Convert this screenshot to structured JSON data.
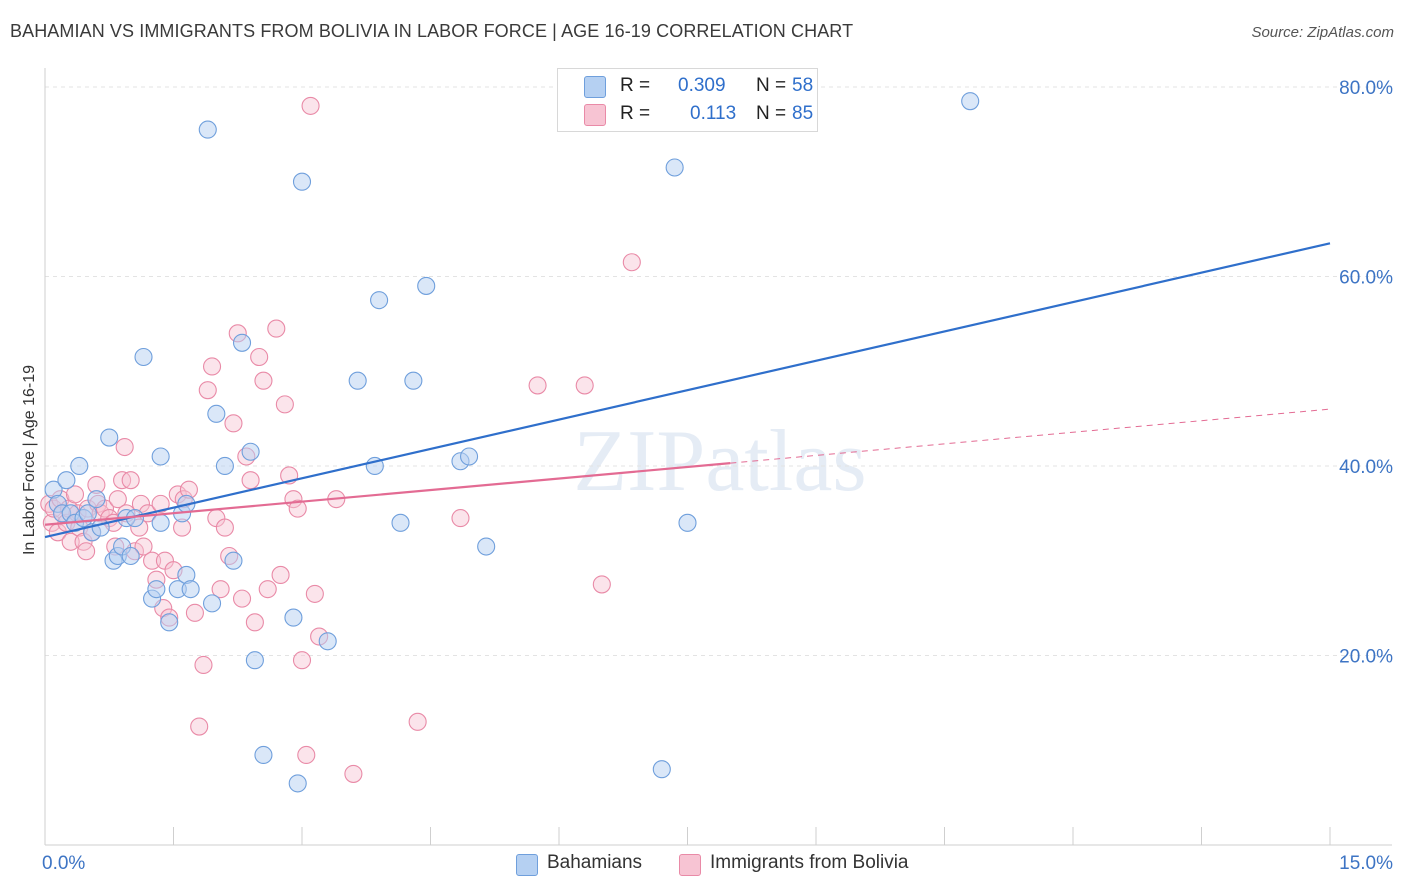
{
  "title": "BAHAMIAN VS IMMIGRANTS FROM BOLIVIA IN LABOR FORCE | AGE 16-19 CORRELATION CHART",
  "source": "Source: ZipAtlas.com",
  "watermark": "ZIPatlas",
  "legend_top": {
    "rows": [
      {
        "r_label": "R =",
        "r_value": "0.309",
        "n_label": "N =",
        "n_value": "58"
      },
      {
        "r_label": "R =",
        "r_value": "0.113",
        "n_label": "N =",
        "n_value": "85"
      }
    ]
  },
  "legend_bottom": {
    "items": [
      "Bahamians",
      "Immigrants from Bolivia"
    ]
  },
  "colors": {
    "blue_fill": "#b5d0f2",
    "blue_stroke": "#6f9fdc",
    "blue_line": "#2f6fcb",
    "pink_fill": "#f7c4d3",
    "pink_stroke": "#e98aa7",
    "pink_line": "#e36b93",
    "tick_label": "#3d74c4",
    "grid": "#e3e3e3"
  },
  "chart_data": {
    "type": "scatter",
    "title": "BAHAMIAN VS IMMIGRANTS FROM BOLIVIA IN LABOR FORCE | AGE 16-19 CORRELATION CHART",
    "xlabel": "",
    "ylabel": "In Labor Force | Age 16-19",
    "xlim": [
      0,
      15
    ],
    "ylim": [
      0,
      82
    ],
    "x_tick_labels": [
      "0.0%",
      "15.0%"
    ],
    "y_ticks": [
      20,
      40,
      60,
      80
    ],
    "y_tick_labels": [
      "20.0%",
      "40.0%",
      "60.0%",
      "80.0%"
    ],
    "grid": true,
    "legend_position": "top-center",
    "series": [
      {
        "name": "Bahamians",
        "r": 0.309,
        "n": 58,
        "trend": {
          "x": [
            0,
            15
          ],
          "y": [
            32.5,
            63.5
          ],
          "dashed_ext": false
        },
        "points": [
          [
            0.1,
            37.5
          ],
          [
            0.15,
            36
          ],
          [
            0.2,
            35
          ],
          [
            0.25,
            38.5
          ],
          [
            0.3,
            35
          ],
          [
            0.35,
            34
          ],
          [
            0.4,
            40
          ],
          [
            0.45,
            34.5
          ],
          [
            0.5,
            35
          ],
          [
            0.55,
            33
          ],
          [
            0.6,
            36.5
          ],
          [
            0.65,
            33.5
          ],
          [
            0.75,
            43
          ],
          [
            0.8,
            30
          ],
          [
            0.85,
            30.5
          ],
          [
            0.9,
            31.5
          ],
          [
            0.95,
            34.5
          ],
          [
            1.0,
            30.5
          ],
          [
            1.05,
            34.5
          ],
          [
            1.15,
            51.5
          ],
          [
            1.25,
            26
          ],
          [
            1.3,
            27
          ],
          [
            1.35,
            41
          ],
          [
            1.35,
            34
          ],
          [
            1.45,
            23.5
          ],
          [
            1.55,
            27
          ],
          [
            1.6,
            35
          ],
          [
            1.65,
            36
          ],
          [
            1.65,
            28.5
          ],
          [
            1.7,
            27
          ],
          [
            1.9,
            75.5
          ],
          [
            1.95,
            25.5
          ],
          [
            2.0,
            45.5
          ],
          [
            2.1,
            40
          ],
          [
            2.2,
            30
          ],
          [
            2.3,
            53
          ],
          [
            2.4,
            41.5
          ],
          [
            2.45,
            19.5
          ],
          [
            2.55,
            9.5
          ],
          [
            2.9,
            24
          ],
          [
            2.95,
            6.5
          ],
          [
            3.0,
            70
          ],
          [
            3.3,
            21.5
          ],
          [
            3.65,
            49
          ],
          [
            3.85,
            40
          ],
          [
            3.9,
            57.5
          ],
          [
            4.15,
            34
          ],
          [
            4.3,
            49
          ],
          [
            4.45,
            59
          ],
          [
            4.85,
            40.5
          ],
          [
            4.95,
            41
          ],
          [
            5.15,
            31.5
          ],
          [
            7.35,
            71.5
          ],
          [
            7.2,
            8
          ],
          [
            7.5,
            34
          ],
          [
            10.8,
            78.5
          ]
        ]
      },
      {
        "name": "Immigrants from Bolivia",
        "r": 0.113,
        "n": 85,
        "trend": {
          "x": [
            0,
            8.0
          ],
          "y": [
            33.8,
            40.3
          ],
          "dashed_to": [
            15,
            46
          ]
        },
        "points": [
          [
            0.05,
            36
          ],
          [
            0.08,
            34
          ],
          [
            0.1,
            35.5
          ],
          [
            0.15,
            33
          ],
          [
            0.18,
            36.5
          ],
          [
            0.2,
            35
          ],
          [
            0.25,
            34
          ],
          [
            0.28,
            35.5
          ],
          [
            0.3,
            32
          ],
          [
            0.35,
            37
          ],
          [
            0.38,
            35
          ],
          [
            0.4,
            33.5
          ],
          [
            0.45,
            32
          ],
          [
            0.48,
            31
          ],
          [
            0.5,
            35.5
          ],
          [
            0.55,
            33
          ],
          [
            0.6,
            38
          ],
          [
            0.62,
            36
          ],
          [
            0.65,
            35
          ],
          [
            0.7,
            35.5
          ],
          [
            0.75,
            34.5
          ],
          [
            0.8,
            34
          ],
          [
            0.82,
            31.5
          ],
          [
            0.85,
            36.5
          ],
          [
            0.9,
            38.5
          ],
          [
            0.93,
            42
          ],
          [
            0.95,
            35
          ],
          [
            1.0,
            38.5
          ],
          [
            1.05,
            31
          ],
          [
            1.1,
            33.5
          ],
          [
            1.12,
            36
          ],
          [
            1.15,
            31.5
          ],
          [
            1.2,
            35
          ],
          [
            1.25,
            30
          ],
          [
            1.3,
            28
          ],
          [
            1.35,
            36
          ],
          [
            1.38,
            25
          ],
          [
            1.4,
            30
          ],
          [
            1.45,
            24
          ],
          [
            1.5,
            29
          ],
          [
            1.55,
            37
          ],
          [
            1.6,
            33.5
          ],
          [
            1.62,
            36.5
          ],
          [
            1.68,
            37.5
          ],
          [
            1.75,
            24.5
          ],
          [
            1.8,
            12.5
          ],
          [
            1.85,
            19
          ],
          [
            1.9,
            48
          ],
          [
            1.95,
            50.5
          ],
          [
            2.0,
            34.5
          ],
          [
            2.05,
            27
          ],
          [
            2.1,
            33.5
          ],
          [
            2.15,
            30.5
          ],
          [
            2.2,
            44.5
          ],
          [
            2.25,
            54
          ],
          [
            2.3,
            26
          ],
          [
            2.35,
            41
          ],
          [
            2.4,
            38.5
          ],
          [
            2.45,
            23.5
          ],
          [
            2.5,
            51.5
          ],
          [
            2.55,
            49
          ],
          [
            2.6,
            27
          ],
          [
            2.7,
            54.5
          ],
          [
            2.75,
            28.5
          ],
          [
            2.8,
            46.5
          ],
          [
            2.85,
            39
          ],
          [
            2.9,
            36.5
          ],
          [
            2.95,
            35.5
          ],
          [
            3.0,
            19.5
          ],
          [
            3.05,
            9.5
          ],
          [
            3.1,
            78
          ],
          [
            3.15,
            26.5
          ],
          [
            3.2,
            22
          ],
          [
            3.4,
            36.5
          ],
          [
            3.6,
            7.5
          ],
          [
            4.35,
            13
          ],
          [
            4.85,
            34.5
          ],
          [
            5.75,
            48.5
          ],
          [
            6.3,
            48.5
          ],
          [
            6.5,
            27.5
          ],
          [
            6.85,
            61.5
          ]
        ]
      }
    ]
  }
}
